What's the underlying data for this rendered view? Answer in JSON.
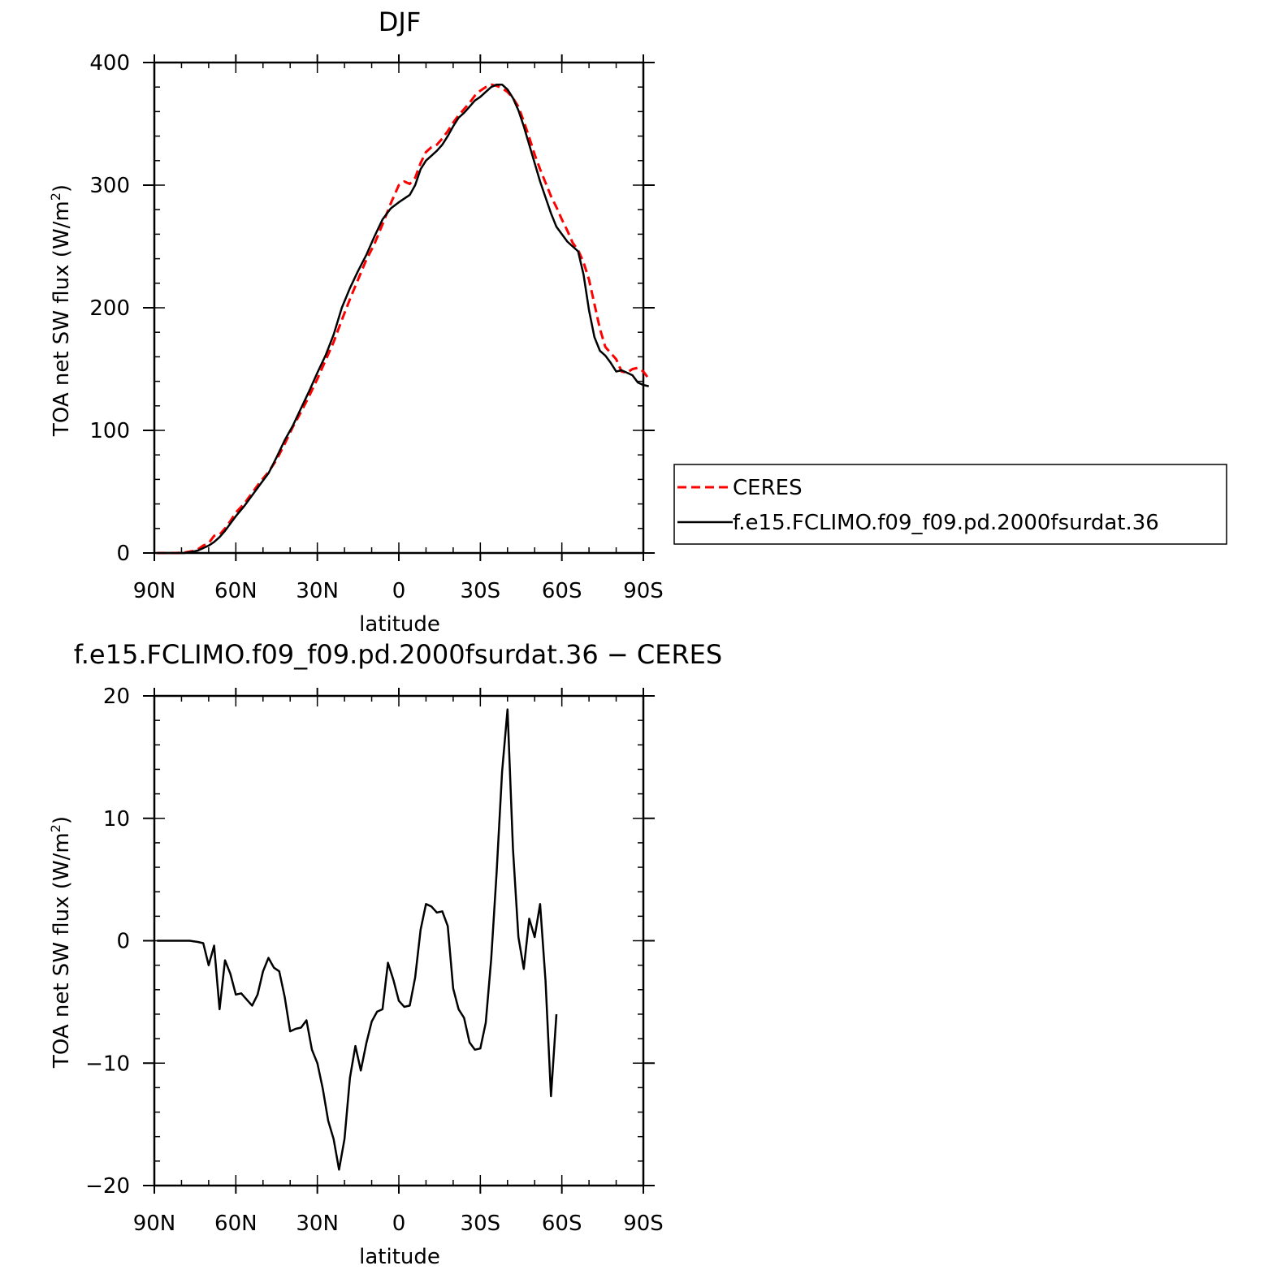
{
  "chart_data": [
    {
      "type": "line",
      "title": "DJF",
      "xlabel": "latitude",
      "ylabel_main": "TOA net SW flux (W/m",
      "ylabel_sup": "2",
      "ylabel_close": ")",
      "xlim": [
        -90,
        90
      ],
      "ylim": [
        0,
        400
      ],
      "x_ticks": [
        {
          "value": -90,
          "label": "90N"
        },
        {
          "value": -60,
          "label": "60N"
        },
        {
          "value": -30,
          "label": "30N"
        },
        {
          "value": 0,
          "label": "0"
        },
        {
          "value": 30,
          "label": "30S"
        },
        {
          "value": 60,
          "label": "60S"
        },
        {
          "value": 90,
          "label": "90S"
        }
      ],
      "y_ticks": [
        {
          "value": 0,
          "label": "0"
        },
        {
          "value": 100,
          "label": "100"
        },
        {
          "value": 200,
          "label": "200"
        },
        {
          "value": 300,
          "label": "300"
        },
        {
          "value": 400,
          "label": "400"
        }
      ],
      "legend": "right",
      "series": [
        {
          "name": "CERES",
          "color": "#ff0000",
          "dash": true,
          "points": [
            [
              -89,
              0
            ],
            [
              -86,
              0
            ],
            [
              -82,
              0
            ],
            [
              -79,
              0.3
            ],
            [
              -76,
              1.5
            ],
            [
              -74,
              3
            ],
            [
              -72,
              6
            ],
            [
              -70,
              8
            ],
            [
              -68,
              14
            ],
            [
              -66,
              15
            ],
            [
              -64,
              20
            ],
            [
              -62,
              26
            ],
            [
              -60,
              33
            ],
            [
              -57,
              40
            ],
            [
              -54,
              49
            ],
            [
              -51,
              58
            ],
            [
              -48,
              66
            ],
            [
              -45,
              76
            ],
            [
              -42,
              89
            ],
            [
              -39,
              103
            ],
            [
              -36,
              115
            ],
            [
              -33,
              128
            ],
            [
              -30,
              142
            ],
            [
              -27,
              157
            ],
            [
              -24,
              172
            ],
            [
              -21,
              190
            ],
            [
              -18,
              207
            ],
            [
              -15,
              223
            ],
            [
              -12,
              239
            ],
            [
              -9,
              252
            ],
            [
              -6,
              268
            ],
            [
              -3,
              285
            ],
            [
              0,
              300
            ],
            [
              2,
              303
            ],
            [
              4,
              301
            ],
            [
              6,
              306
            ],
            [
              8,
              318
            ],
            [
              10,
              327
            ],
            [
              12,
              331
            ],
            [
              14,
              333
            ],
            [
              16,
              338
            ],
            [
              18,
              344
            ],
            [
              20,
              351
            ],
            [
              22,
              357
            ],
            [
              24,
              362
            ],
            [
              26,
              367
            ],
            [
              28,
              373
            ],
            [
              30,
              377
            ],
            [
              32,
              380
            ],
            [
              34,
              382
            ],
            [
              36,
              381
            ],
            [
              38,
              379
            ],
            [
              40,
              376
            ],
            [
              42,
              371
            ],
            [
              44,
              364
            ],
            [
              46,
              352
            ],
            [
              48,
              339
            ],
            [
              50,
              325
            ],
            [
              52,
              313
            ],
            [
              54,
              302
            ],
            [
              56,
              291
            ],
            [
              58,
              282
            ],
            [
              60,
              272
            ],
            [
              62,
              263
            ],
            [
              64,
              253
            ],
            [
              66,
              247
            ],
            [
              68,
              237
            ],
            [
              70,
              223
            ],
            [
              72,
              203
            ],
            [
              74,
              183
            ],
            [
              76,
              168
            ],
            [
              78,
              163
            ],
            [
              80,
              158
            ],
            [
              82,
              148
            ],
            [
              84,
              147
            ],
            [
              86,
              150
            ],
            [
              88,
              151
            ],
            [
              90,
              148
            ],
            [
              92,
              142
            ]
          ]
        },
        {
          "name": "f.e15.FCLIMO.f09_f09.pd.2000fsurdat.36",
          "color": "#000000",
          "dash": false,
          "points": [
            [
              -89,
              0
            ],
            [
              -86,
              0
            ],
            [
              -82,
              0
            ],
            [
              -79,
              0
            ],
            [
              -76,
              1
            ],
            [
              -74,
              2
            ],
            [
              -72,
              4
            ],
            [
              -70,
              6
            ],
            [
              -68,
              9
            ],
            [
              -66,
              13
            ],
            [
              -64,
              18
            ],
            [
              -62,
              24
            ],
            [
              -60,
              30
            ],
            [
              -57,
              38
            ],
            [
              -54,
              47
            ],
            [
              -51,
              56
            ],
            [
              -48,
              65
            ],
            [
              -45,
              78
            ],
            [
              -42,
              92
            ],
            [
              -39,
              104
            ],
            [
              -36,
              118
            ],
            [
              -33,
              132
            ],
            [
              -30,
              147
            ],
            [
              -27,
              161
            ],
            [
              -24,
              178
            ],
            [
              -21,
              200
            ],
            [
              -18,
              216
            ],
            [
              -15,
              230
            ],
            [
              -12,
              243
            ],
            [
              -9,
              258
            ],
            [
              -6,
              272
            ],
            [
              -3,
              281
            ],
            [
              0,
              286
            ],
            [
              2,
              289
            ],
            [
              4,
              292
            ],
            [
              6,
              300
            ],
            [
              8,
              313
            ],
            [
              10,
              320
            ],
            [
              12,
              324
            ],
            [
              14,
              328
            ],
            [
              16,
              333
            ],
            [
              18,
              340
            ],
            [
              20,
              348
            ],
            [
              22,
              355
            ],
            [
              24,
              359
            ],
            [
              26,
              364
            ],
            [
              28,
              369
            ],
            [
              30,
              372
            ],
            [
              32,
              376
            ],
            [
              34,
              380
            ],
            [
              36,
              382
            ],
            [
              38,
              382
            ],
            [
              40,
              378
            ],
            [
              42,
              371
            ],
            [
              44,
              361
            ],
            [
              46,
              348
            ],
            [
              48,
              333
            ],
            [
              50,
              318
            ],
            [
              52,
              303
            ],
            [
              54,
              290
            ],
            [
              56,
              277
            ],
            [
              58,
              266
            ],
            [
              60,
              260
            ],
            [
              62,
              254
            ],
            [
              64,
              250
            ],
            [
              66,
              246
            ],
            [
              68,
              227
            ],
            [
              70,
              198
            ],
            [
              72,
              176
            ],
            [
              74,
              165
            ],
            [
              76,
              161
            ],
            [
              78,
              155
            ],
            [
              80,
              148
            ],
            [
              82,
              149
            ],
            [
              84,
              147
            ],
            [
              86,
              145
            ],
            [
              88,
              139
            ],
            [
              90,
              137
            ],
            [
              92,
              136
            ]
          ]
        }
      ]
    },
    {
      "type": "line",
      "title": "f.e15.FCLIMO.f09_f09.pd.2000fsurdat.36 − CERES",
      "xlabel": "latitude",
      "ylabel_main": "TOA net SW flux (W/m",
      "ylabel_sup": "2",
      "ylabel_close": ")",
      "xlim": [
        -90,
        90
      ],
      "ylim": [
        -20,
        20
      ],
      "x_ticks": [
        {
          "value": -90,
          "label": "90N"
        },
        {
          "value": -60,
          "label": "60N"
        },
        {
          "value": -30,
          "label": "30N"
        },
        {
          "value": 0,
          "label": "0"
        },
        {
          "value": 30,
          "label": "30S"
        },
        {
          "value": 60,
          "label": "60S"
        },
        {
          "value": 90,
          "label": "90S"
        }
      ],
      "y_ticks": [
        {
          "value": -20,
          "label": "−20"
        },
        {
          "value": -10,
          "label": "−10"
        },
        {
          "value": 0,
          "label": "0"
        },
        {
          "value": 10,
          "label": "10"
        },
        {
          "value": 20,
          "label": "20"
        }
      ],
      "series": [
        {
          "color": "#000000",
          "points": [
            [
              -89,
              0
            ],
            [
              -86,
              0
            ],
            [
              -83,
              0
            ],
            [
              -80,
              0
            ],
            [
              -77,
              0
            ],
            [
              -74,
              -0.1
            ],
            [
              -72,
              -0.2
            ],
            [
              -70,
              -2
            ],
            [
              -68,
              -0.4
            ],
            [
              -66,
              -5.6
            ],
            [
              -64,
              -1.6
            ],
            [
              -62,
              -2.7
            ],
            [
              -60,
              -4.4
            ],
            [
              -58,
              -4.3
            ],
            [
              -56,
              -4.8
            ],
            [
              -54,
              -5.3
            ],
            [
              -52,
              -4.4
            ],
            [
              -50,
              -2.5
            ],
            [
              -48,
              -1.4
            ],
            [
              -46,
              -2.2
            ],
            [
              -44,
              -2.5
            ],
            [
              -42,
              -4.6
            ],
            [
              -40,
              -7.4
            ],
            [
              -38,
              -7.2
            ],
            [
              -36,
              -7.1
            ],
            [
              -34,
              -6.5
            ],
            [
              -32,
              -8.9
            ],
            [
              -30,
              -10
            ],
            [
              -28,
              -12.1
            ],
            [
              -26,
              -14.7
            ],
            [
              -24,
              -16.2
            ],
            [
              -22,
              -18.7
            ],
            [
              -20,
              -16.2
            ],
            [
              -18,
              -11.2
            ],
            [
              -16,
              -8.6
            ],
            [
              -14,
              -10.6
            ],
            [
              -12,
              -8.4
            ],
            [
              -10,
              -6.6
            ],
            [
              -8,
              -5.8
            ],
            [
              -6,
              -5.6
            ],
            [
              -4,
              -1.8
            ],
            [
              -2,
              -3.2
            ],
            [
              0,
              -4.9
            ],
            [
              2,
              -5.4
            ],
            [
              4,
              -5.3
            ],
            [
              6,
              -3
            ],
            [
              8,
              0.9
            ],
            [
              10,
              3
            ],
            [
              12,
              2.8
            ],
            [
              14,
              2.3
            ],
            [
              16,
              2.4
            ],
            [
              18,
              1.2
            ],
            [
              20,
              -3.9
            ],
            [
              22,
              -5.6
            ],
            [
              24,
              -6.3
            ],
            [
              26,
              -8.3
            ],
            [
              28,
              -8.9
            ],
            [
              30,
              -8.8
            ],
            [
              32,
              -6.7
            ],
            [
              34,
              -1.5
            ],
            [
              36,
              5.6
            ],
            [
              38,
              13.8
            ],
            [
              40,
              18.9
            ],
            [
              42,
              7.5
            ],
            [
              44,
              0.3
            ],
            [
              46,
              -2.3
            ],
            [
              48,
              1.8
            ],
            [
              50,
              0.3
            ],
            [
              52,
              3
            ],
            [
              54,
              -3.3
            ],
            [
              56,
              -12.7
            ],
            [
              58,
              -6
            ]
          ]
        }
      ]
    }
  ],
  "legend": {
    "items": [
      {
        "label": "CERES",
        "color": "#ff0000",
        "dash": true
      },
      {
        "label": "f.e15.FCLIMO.f09_f09.pd.2000fsurdat.36",
        "color": "#000000",
        "dash": false
      }
    ]
  }
}
